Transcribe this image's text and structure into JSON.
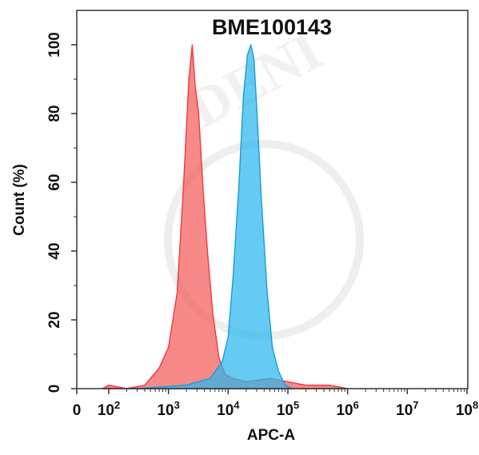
{
  "chart_data": {
    "type": "area",
    "title": "BME100143",
    "xlabel": "APC-A",
    "ylabel": "Count  (%)",
    "x_scale": "log",
    "xlim": [
      0,
      100000000
    ],
    "ylim": [
      0,
      110
    ],
    "x_ticks": [
      {
        "value": 0,
        "base": "0",
        "exp": ""
      },
      {
        "value": 100,
        "base": "10",
        "exp": "2"
      },
      {
        "value": 1000,
        "base": "10",
        "exp": "3"
      },
      {
        "value": 10000,
        "base": "10",
        "exp": "4"
      },
      {
        "value": 100000,
        "base": "10",
        "exp": "5"
      },
      {
        "value": 1000000,
        "base": "10",
        "exp": "6"
      },
      {
        "value": 10000000,
        "base": "10",
        "exp": "7"
      },
      {
        "value": 100000000,
        "base": "10",
        "exp": "8"
      }
    ],
    "y_ticks": [
      "0",
      "20",
      "40",
      "60",
      "80",
      "100"
    ],
    "grid": false,
    "series": [
      {
        "color": "#f0393a",
        "fill": "#f45b5b",
        "points": [
          [
            40,
            0
          ],
          [
            100,
            1
          ],
          [
            200,
            0
          ],
          [
            400,
            1
          ],
          [
            700,
            6
          ],
          [
            1000,
            12
          ],
          [
            1400,
            28
          ],
          [
            1800,
            60
          ],
          [
            2200,
            90
          ],
          [
            2500,
            100
          ],
          [
            2800,
            88
          ],
          [
            3200,
            80
          ],
          [
            3800,
            58
          ],
          [
            4500,
            40
          ],
          [
            5500,
            22
          ],
          [
            7000,
            9
          ],
          [
            9000,
            4
          ],
          [
            12000,
            3
          ],
          [
            20000,
            2
          ],
          [
            50000,
            3
          ],
          [
            100000,
            2
          ],
          [
            200000,
            1
          ],
          [
            500000,
            1
          ],
          [
            1000000,
            0
          ]
        ]
      },
      {
        "color": "#1b9bd6",
        "fill": "#2ab7ee",
        "points": [
          [
            300,
            0
          ],
          [
            2000,
            1
          ],
          [
            5000,
            3
          ],
          [
            8000,
            8
          ],
          [
            10000,
            15
          ],
          [
            12000,
            32
          ],
          [
            15000,
            58
          ],
          [
            18000,
            85
          ],
          [
            21000,
            97
          ],
          [
            24000,
            100
          ],
          [
            27000,
            96
          ],
          [
            30000,
            82
          ],
          [
            36000,
            55
          ],
          [
            45000,
            28
          ],
          [
            55000,
            12
          ],
          [
            70000,
            5
          ],
          [
            90000,
            1
          ],
          [
            120000,
            0
          ]
        ]
      }
    ],
    "watermark": "DENI"
  }
}
